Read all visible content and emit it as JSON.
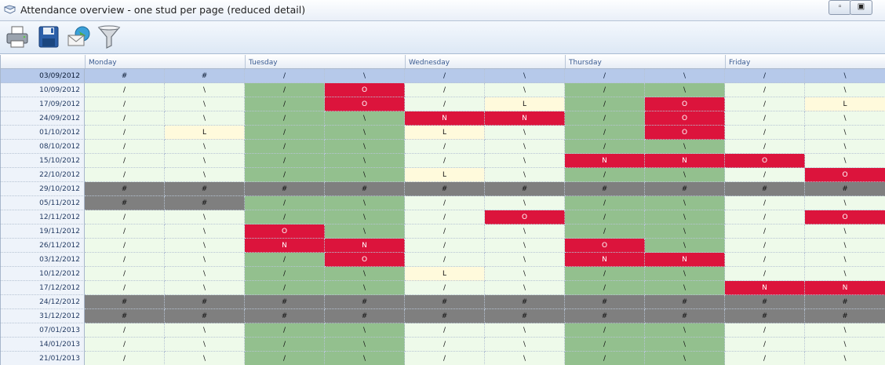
{
  "window": {
    "title": "Attendance overview - one stud per page (reduced detail)",
    "buttons": [
      "minimize",
      "maximize"
    ]
  },
  "toolbar": {
    "icons": [
      "printer-icon",
      "save-disk-icon",
      "email-globe-icon",
      "filter-funnel-icon"
    ]
  },
  "header": {
    "days": [
      "Monday",
      "Tuesday",
      "Wednesday",
      "Thursday",
      "Friday"
    ]
  },
  "colors": {
    "present": "#eefaea",
    "present_green": "#93c08e",
    "absent_red": "#dc143c",
    "late_yellow": "#fffadc",
    "closed_grey": "#7f7f7f",
    "selected_row": "#b6c9ea"
  },
  "rows": [
    {
      "date": "03/09/2012",
      "selected": true,
      "cells": [
        "#",
        "#",
        "/",
        "\\",
        "/",
        "\\",
        "/",
        "\\",
        "/",
        "\\"
      ],
      "styles": [
        "w",
        "w",
        "w",
        "w",
        "w",
        "w",
        "w",
        "w",
        "w",
        "w"
      ]
    },
    {
      "date": "10/09/2012",
      "cells": [
        "/",
        "\\",
        "/",
        "O",
        "/",
        "\\",
        "/",
        "\\",
        "/",
        "\\"
      ],
      "styles": [
        "w",
        "w",
        "g",
        "O",
        "w",
        "w",
        "g",
        "g",
        "w",
        "w"
      ]
    },
    {
      "date": "17/09/2012",
      "cells": [
        "/",
        "\\",
        "/",
        "O",
        "/",
        "L",
        "/",
        "O",
        "/",
        "L"
      ],
      "styles": [
        "w",
        "w",
        "g",
        "O",
        "w",
        "L",
        "g",
        "O",
        "w",
        "L"
      ]
    },
    {
      "date": "24/09/2012",
      "cells": [
        "/",
        "\\",
        "/",
        "\\",
        "N",
        "N",
        "/",
        "O",
        "/",
        "\\"
      ],
      "styles": [
        "w",
        "w",
        "g",
        "g",
        "N",
        "N",
        "g",
        "O",
        "w",
        "w"
      ]
    },
    {
      "date": "01/10/2012",
      "cells": [
        "/",
        "L",
        "/",
        "\\",
        "L",
        "\\",
        "/",
        "O",
        "/",
        "\\"
      ],
      "styles": [
        "w",
        "L",
        "g",
        "g",
        "L",
        "w",
        "g",
        "O",
        "w",
        "w"
      ]
    },
    {
      "date": "08/10/2012",
      "cells": [
        "/",
        "\\",
        "/",
        "\\",
        "/",
        "\\",
        "/",
        "\\",
        "/",
        "\\"
      ],
      "styles": [
        "w",
        "w",
        "g",
        "g",
        "w",
        "w",
        "g",
        "g",
        "w",
        "w"
      ]
    },
    {
      "date": "15/10/2012",
      "cells": [
        "/",
        "\\",
        "/",
        "\\",
        "/",
        "\\",
        "N",
        "N",
        "O",
        "\\"
      ],
      "styles": [
        "w",
        "w",
        "g",
        "g",
        "w",
        "w",
        "N",
        "N",
        "O",
        "w"
      ]
    },
    {
      "date": "22/10/2012",
      "cells": [
        "/",
        "\\",
        "/",
        "\\",
        "L",
        "\\",
        "/",
        "\\",
        "/",
        "O"
      ],
      "styles": [
        "w",
        "w",
        "g",
        "g",
        "L",
        "w",
        "g",
        "g",
        "w",
        "O"
      ]
    },
    {
      "date": "29/10/2012",
      "cells": [
        "#",
        "#",
        "#",
        "#",
        "#",
        "#",
        "#",
        "#",
        "#",
        "#"
      ],
      "styles": [
        "h",
        "h",
        "h",
        "h",
        "h",
        "h",
        "h",
        "h",
        "h",
        "h"
      ]
    },
    {
      "date": "05/11/2012",
      "cells": [
        "#",
        "#",
        "/",
        "\\",
        "/",
        "\\",
        "/",
        "\\",
        "/",
        "\\"
      ],
      "styles": [
        "h",
        "h",
        "g",
        "g",
        "w",
        "w",
        "g",
        "g",
        "w",
        "w"
      ]
    },
    {
      "date": "12/11/2012",
      "cells": [
        "/",
        "\\",
        "/",
        "\\",
        "/",
        "O",
        "/",
        "\\",
        "/",
        "O"
      ],
      "styles": [
        "w",
        "w",
        "g",
        "g",
        "w",
        "O",
        "g",
        "g",
        "w",
        "O"
      ]
    },
    {
      "date": "19/11/2012",
      "cells": [
        "/",
        "\\",
        "O",
        "\\",
        "/",
        "\\",
        "/",
        "\\",
        "/",
        "\\"
      ],
      "styles": [
        "w",
        "w",
        "O",
        "g",
        "w",
        "w",
        "g",
        "g",
        "w",
        "w"
      ]
    },
    {
      "date": "26/11/2012",
      "cells": [
        "/",
        "\\",
        "N",
        "N",
        "/",
        "\\",
        "O",
        "\\",
        "/",
        "\\"
      ],
      "styles": [
        "w",
        "w",
        "N",
        "N",
        "w",
        "w",
        "O",
        "g",
        "w",
        "w"
      ]
    },
    {
      "date": "03/12/2012",
      "cells": [
        "/",
        "\\",
        "/",
        "O",
        "/",
        "\\",
        "N",
        "N",
        "/",
        "\\"
      ],
      "styles": [
        "w",
        "w",
        "g",
        "O",
        "w",
        "w",
        "N",
        "N",
        "w",
        "w"
      ]
    },
    {
      "date": "10/12/2012",
      "cells": [
        "/",
        "\\",
        "/",
        "\\",
        "L",
        "\\",
        "/",
        "\\",
        "/",
        "\\"
      ],
      "styles": [
        "w",
        "w",
        "g",
        "g",
        "L",
        "w",
        "g",
        "g",
        "w",
        "w"
      ]
    },
    {
      "date": "17/12/2012",
      "cells": [
        "/",
        "\\",
        "/",
        "\\",
        "/",
        "\\",
        "/",
        "\\",
        "N",
        "N"
      ],
      "styles": [
        "w",
        "w",
        "g",
        "g",
        "w",
        "w",
        "g",
        "g",
        "N",
        "N"
      ]
    },
    {
      "date": "24/12/2012",
      "cells": [
        "#",
        "#",
        "#",
        "#",
        "#",
        "#",
        "#",
        "#",
        "#",
        "#"
      ],
      "styles": [
        "h",
        "h",
        "h",
        "h",
        "h",
        "h",
        "h",
        "h",
        "h",
        "h"
      ]
    },
    {
      "date": "31/12/2012",
      "cells": [
        "#",
        "#",
        "#",
        "#",
        "#",
        "#",
        "#",
        "#",
        "#",
        "#"
      ],
      "styles": [
        "h",
        "h",
        "h",
        "h",
        "h",
        "h",
        "h",
        "h",
        "h",
        "h"
      ]
    },
    {
      "date": "07/01/2013",
      "cells": [
        "/",
        "\\",
        "/",
        "\\",
        "/",
        "\\",
        "/",
        "\\",
        "/",
        "\\"
      ],
      "styles": [
        "w",
        "w",
        "g",
        "g",
        "w",
        "w",
        "g",
        "g",
        "w",
        "w"
      ]
    },
    {
      "date": "14/01/2013",
      "cells": [
        "/",
        "\\",
        "/",
        "\\",
        "/",
        "\\",
        "/",
        "\\",
        "/",
        "\\"
      ],
      "styles": [
        "w",
        "w",
        "g",
        "g",
        "w",
        "w",
        "g",
        "g",
        "w",
        "w"
      ]
    },
    {
      "date": "21/01/2013",
      "cells": [
        "/",
        "\\",
        "/",
        "\\",
        "/",
        "\\",
        "/",
        "\\",
        "/",
        "\\"
      ],
      "styles": [
        "w",
        "w",
        "g",
        "g",
        "w",
        "w",
        "g",
        "g",
        "w",
        "w"
      ]
    }
  ]
}
